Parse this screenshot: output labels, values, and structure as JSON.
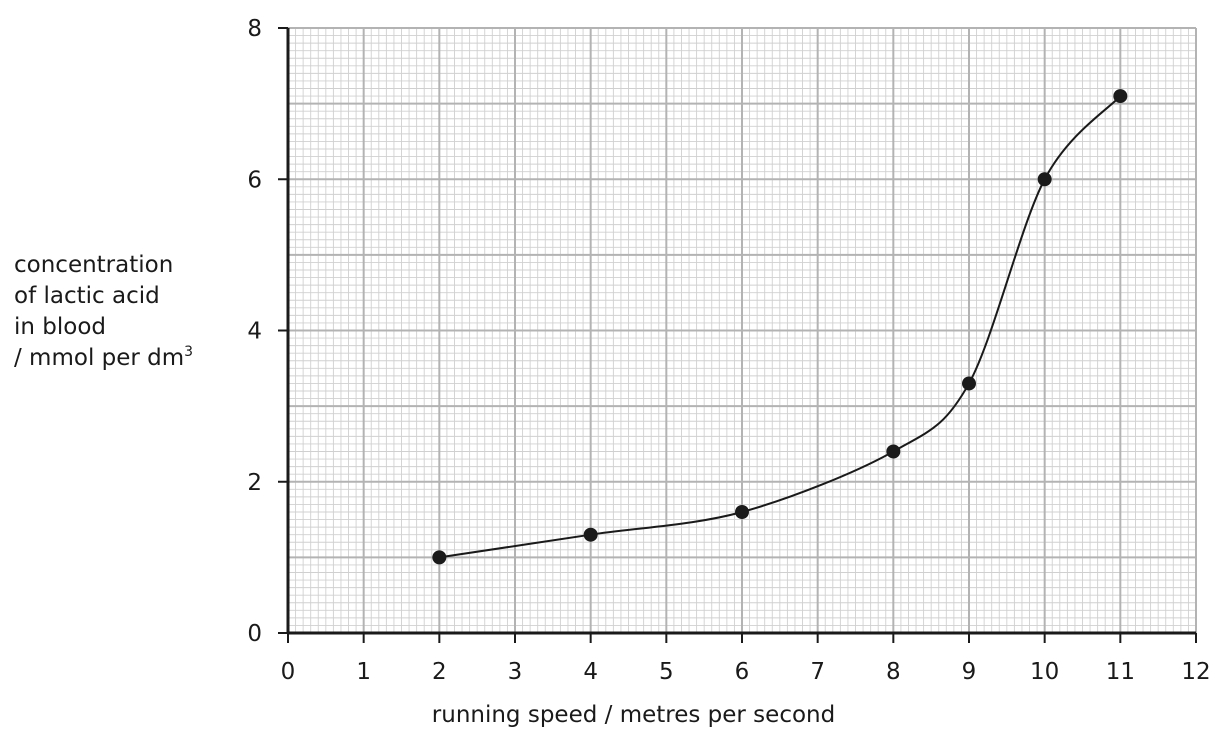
{
  "chart_data": {
    "type": "line",
    "x": [
      2,
      4,
      6,
      8,
      9,
      10,
      11
    ],
    "y": [
      1.0,
      1.3,
      1.6,
      2.4,
      3.3,
      6.0,
      7.1
    ],
    "xlim": [
      0,
      12
    ],
    "ylim": [
      0,
      8
    ],
    "xticks": [
      0,
      1,
      2,
      3,
      4,
      5,
      6,
      7,
      8,
      9,
      10,
      11,
      12
    ],
    "xtick_labels": [
      "0",
      "1",
      "2",
      "3",
      "4",
      "5",
      "6",
      "7",
      "8",
      "9",
      "10",
      "11",
      "12"
    ],
    "yticks": [
      0,
      2,
      4,
      6,
      8
    ],
    "ytick_labels": [
      "0",
      "2",
      "4",
      "6",
      "8"
    ],
    "xlabel": "running speed / metres per second",
    "ylabel_lines": [
      "concentration",
      "of lactic acid",
      "in blood",
      "/ mmol per dm"
    ],
    "ylabel_unit_superscript": "3",
    "grid": true,
    "x_ticks_nonuniform": true,
    "line_style": "smooth curve through points",
    "marker": "filled circle",
    "colors": {
      "line": "#1a1a1a",
      "grid_major": "#b3b3b3",
      "grid_minor": "#d0d0d0",
      "axis": "#1a1a1a"
    }
  }
}
